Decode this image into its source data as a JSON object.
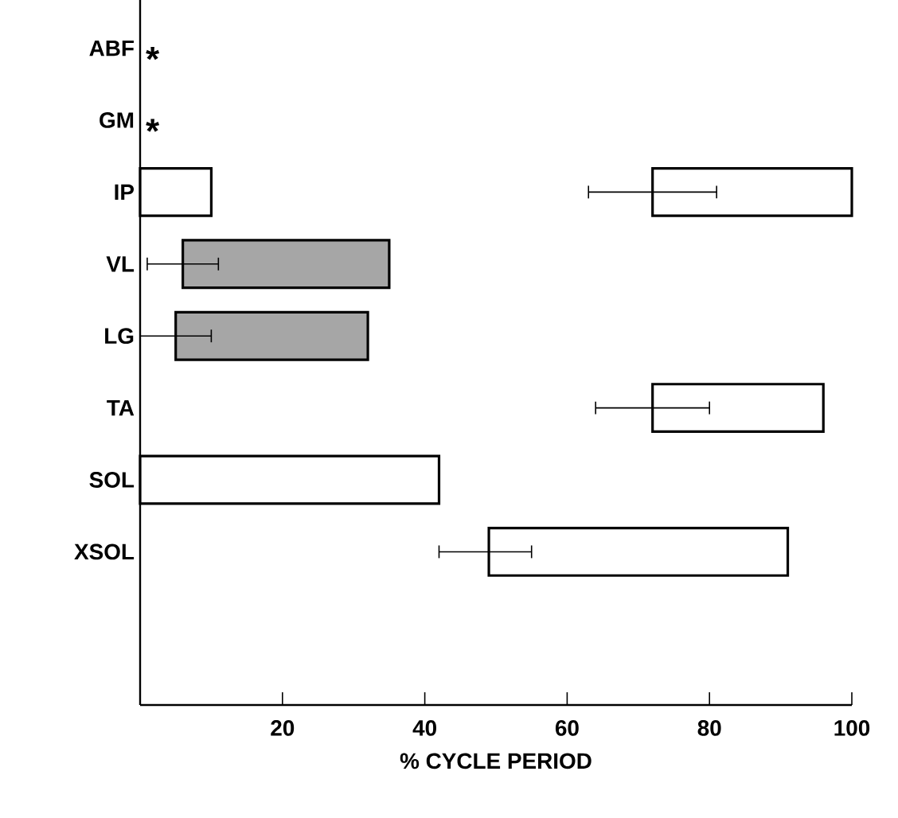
{
  "chart_data": {
    "type": "bar",
    "orientation": "horizontal",
    "xlabel": "% CYCLE PERIOD",
    "categories": [
      "ABF",
      "GM",
      "IP",
      "VL",
      "LG",
      "TA",
      "SOL",
      "XSOL"
    ],
    "series": [
      {
        "color": "#ffffff",
        "base": [
          null,
          null,
          0,
          null,
          null,
          72,
          0,
          49
        ],
        "values": [
          null,
          null,
          10,
          null,
          null,
          24,
          42,
          42
        ],
        "errors": [
          null,
          null,
          null,
          null,
          null,
          [
            64,
            80
          ],
          null,
          [
            42,
            55
          ]
        ]
      },
      {
        "color": "#a6a6a6",
        "base": [
          null,
          null,
          null,
          6,
          5,
          null,
          null,
          null
        ],
        "values": [
          null,
          null,
          null,
          29,
          27,
          null,
          null,
          null
        ],
        "errors": [
          null,
          null,
          null,
          [
            1,
            11
          ],
          [
            0,
            10
          ],
          null,
          null,
          null
        ]
      },
      {
        "color": "#ffffff",
        "base": [
          null,
          null,
          72,
          null,
          null,
          null,
          null,
          null
        ],
        "values": [
          null,
          null,
          28,
          null,
          null,
          null,
          null,
          null
        ],
        "errors": [
          null,
          null,
          [
            63,
            81
          ],
          null,
          null,
          null,
          null,
          null
        ]
      }
    ],
    "xlim": [
      0,
      100
    ],
    "xticks": [
      20,
      40,
      60,
      80,
      100
    ],
    "annotations": [
      "*",
      "*"
    ]
  }
}
